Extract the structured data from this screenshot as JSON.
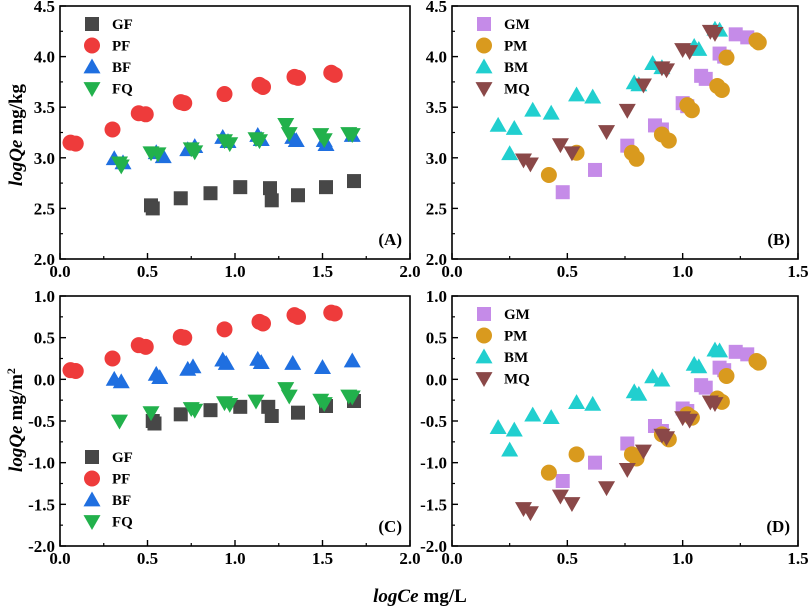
{
  "figure": {
    "xlabel_prefix": "logCe",
    "xlabel_unit": "mg/L",
    "ylabel_top_prefix": "logQe",
    "ylabel_top_unit": "mg/kg",
    "ylabel_bottom_prefix": "logQe",
    "ylabel_bottom_unit": "mg/m",
    "ylabel_bottom_sup": "2"
  },
  "colors": {
    "GF": "#474747",
    "PF": "#ee3b3b",
    "BF": "#1f6fe0",
    "FQ": "#22b14c",
    "GM": "#c58be8",
    "PM": "#d99a1e",
    "BM": "#21cfcf",
    "MQ": "#8a4848"
  },
  "chart_data": [
    {
      "id": "A",
      "type": "scatter",
      "panel_label": "(A)",
      "xlim": [
        0.0,
        2.0
      ],
      "ylim": [
        2.0,
        4.5
      ],
      "xticks": [
        "0.0",
        "0.5",
        "1.0",
        "1.5",
        "2.0"
      ],
      "yticks": [
        "2.0",
        "2.5",
        "3.0",
        "3.5",
        "4.0",
        "4.5"
      ],
      "legend_position": "top-left",
      "series": [
        {
          "name": "GF",
          "marker": "square",
          "points": [
            [
              0.52,
              2.53
            ],
            [
              0.53,
              2.5
            ],
            [
              0.69,
              2.6
            ],
            [
              0.86,
              2.65
            ],
            [
              1.03,
              2.71
            ],
            [
              1.2,
              2.7
            ],
            [
              1.21,
              2.58
            ],
            [
              1.36,
              2.63
            ],
            [
              1.52,
              2.71
            ],
            [
              1.68,
              2.77
            ]
          ]
        },
        {
          "name": "PF",
          "marker": "circle",
          "points": [
            [
              0.06,
              3.15
            ],
            [
              0.09,
              3.14
            ],
            [
              0.3,
              3.28
            ],
            [
              0.45,
              3.44
            ],
            [
              0.49,
              3.43
            ],
            [
              0.69,
              3.55
            ],
            [
              0.71,
              3.54
            ],
            [
              0.94,
              3.63
            ],
            [
              1.14,
              3.72
            ],
            [
              1.16,
              3.7
            ],
            [
              1.34,
              3.8
            ],
            [
              1.36,
              3.79
            ],
            [
              1.55,
              3.84
            ],
            [
              1.57,
              3.82
            ]
          ]
        },
        {
          "name": "BF",
          "marker": "triangle-up",
          "points": [
            [
              0.31,
              2.99
            ],
            [
              0.36,
              2.95
            ],
            [
              0.55,
              3.05
            ],
            [
              0.59,
              3.01
            ],
            [
              0.73,
              3.08
            ],
            [
              0.77,
              3.11
            ],
            [
              0.93,
              3.2
            ],
            [
              0.96,
              3.16
            ],
            [
              1.13,
              3.22
            ],
            [
              1.15,
              3.18
            ],
            [
              1.33,
              3.2
            ],
            [
              1.35,
              3.17
            ],
            [
              1.51,
              3.17
            ],
            [
              1.52,
              3.13
            ],
            [
              1.67,
              3.22
            ]
          ]
        },
        {
          "name": "FQ",
          "marker": "triangle-down",
          "points": [
            [
              0.34,
              2.95
            ],
            [
              0.35,
              2.92
            ],
            [
              0.52,
              3.05
            ],
            [
              0.56,
              3.04
            ],
            [
              0.75,
              3.09
            ],
            [
              0.77,
              3.06
            ],
            [
              0.94,
              3.17
            ],
            [
              0.97,
              3.14
            ],
            [
              1.12,
              3.19
            ],
            [
              1.14,
              3.17
            ],
            [
              1.29,
              3.33
            ],
            [
              1.31,
              3.24
            ],
            [
              1.49,
              3.23
            ],
            [
              1.51,
              3.18
            ],
            [
              1.65,
              3.24
            ],
            [
              1.67,
              3.23
            ]
          ]
        }
      ]
    },
    {
      "id": "B",
      "type": "scatter",
      "panel_label": "(B)",
      "xlim": [
        0.0,
        1.5
      ],
      "ylim": [
        2.0,
        4.5
      ],
      "xticks": [
        "0.0",
        "0.5",
        "1.0",
        "1.5"
      ],
      "yticks": [
        "2.0",
        "2.5",
        "3.0",
        "3.5",
        "4.0",
        "4.5"
      ],
      "legend_position": "top-left",
      "series": [
        {
          "name": "GM",
          "marker": "square",
          "points": [
            [
              0.48,
              2.66
            ],
            [
              0.62,
              2.88
            ],
            [
              0.76,
              3.12
            ],
            [
              0.88,
              3.32
            ],
            [
              0.91,
              3.28
            ],
            [
              1.0,
              3.54
            ],
            [
              1.02,
              3.51
            ],
            [
              1.08,
              3.81
            ],
            [
              1.1,
              3.78
            ],
            [
              1.16,
              4.03
            ],
            [
              1.18,
              4.0
            ],
            [
              1.23,
              4.22
            ],
            [
              1.28,
              4.19
            ]
          ]
        },
        {
          "name": "PM",
          "marker": "circle",
          "points": [
            [
              0.42,
              2.83
            ],
            [
              0.54,
              3.05
            ],
            [
              0.78,
              3.05
            ],
            [
              0.8,
              2.99
            ],
            [
              0.91,
              3.23
            ],
            [
              0.94,
              3.17
            ],
            [
              1.02,
              3.52
            ],
            [
              1.04,
              3.47
            ],
            [
              1.15,
              3.71
            ],
            [
              1.17,
              3.67
            ],
            [
              1.19,
              3.99
            ],
            [
              1.32,
              4.16
            ],
            [
              1.33,
              4.14
            ]
          ]
        },
        {
          "name": "BM",
          "marker": "triangle-up",
          "points": [
            [
              0.2,
              3.32
            ],
            [
              0.25,
              3.04
            ],
            [
              0.27,
              3.29
            ],
            [
              0.35,
              3.47
            ],
            [
              0.43,
              3.44
            ],
            [
              0.54,
              3.62
            ],
            [
              0.61,
              3.6
            ],
            [
              0.79,
              3.74
            ],
            [
              0.81,
              3.72
            ],
            [
              0.87,
              3.93
            ],
            [
              0.91,
              3.89
            ],
            [
              1.05,
              4.1
            ],
            [
              1.07,
              4.07
            ],
            [
              1.14,
              4.27
            ],
            [
              1.16,
              4.26
            ]
          ]
        },
        {
          "name": "MQ",
          "marker": "triangle-down",
          "points": [
            [
              0.31,
              2.98
            ],
            [
              0.34,
              2.94
            ],
            [
              0.47,
              3.13
            ],
            [
              0.52,
              3.05
            ],
            [
              0.67,
              3.26
            ],
            [
              0.76,
              3.47
            ],
            [
              0.83,
              3.72
            ],
            [
              0.91,
              3.89
            ],
            [
              0.93,
              3.87
            ],
            [
              1.0,
              4.07
            ],
            [
              1.03,
              4.05
            ],
            [
              1.12,
              4.25
            ],
            [
              1.14,
              4.23
            ]
          ]
        }
      ]
    },
    {
      "id": "C",
      "type": "scatter",
      "panel_label": "(C)",
      "xlim": [
        0.0,
        2.0
      ],
      "ylim": [
        -2.0,
        1.0
      ],
      "xticks": [
        "0.0",
        "0.5",
        "1.0",
        "1.5",
        "2.0"
      ],
      "yticks": [
        "-2.0",
        "-1.5",
        "-1.0",
        "-0.5",
        "0.0",
        "0.5",
        "1.0"
      ],
      "legend_position": "bottom-left",
      "series": [
        {
          "name": "GF",
          "marker": "square",
          "points": [
            [
              0.53,
              -0.5
            ],
            [
              0.54,
              -0.53
            ],
            [
              0.69,
              -0.42
            ],
            [
              0.86,
              -0.37
            ],
            [
              1.03,
              -0.33
            ],
            [
              1.19,
              -0.33
            ],
            [
              1.21,
              -0.44
            ],
            [
              1.36,
              -0.4
            ],
            [
              1.52,
              -0.32
            ],
            [
              1.68,
              -0.26
            ]
          ]
        },
        {
          "name": "PF",
          "marker": "circle",
          "points": [
            [
              0.06,
              0.11
            ],
            [
              0.09,
              0.1
            ],
            [
              0.3,
              0.25
            ],
            [
              0.45,
              0.41
            ],
            [
              0.49,
              0.39
            ],
            [
              0.69,
              0.51
            ],
            [
              0.71,
              0.5
            ],
            [
              0.94,
              0.6
            ],
            [
              1.14,
              0.69
            ],
            [
              1.16,
              0.67
            ],
            [
              1.34,
              0.77
            ],
            [
              1.36,
              0.75
            ],
            [
              1.55,
              0.8
            ],
            [
              1.57,
              0.79
            ]
          ]
        },
        {
          "name": "BF",
          "marker": "triangle-up",
          "points": [
            [
              0.31,
              0.0
            ],
            [
              0.35,
              -0.03
            ],
            [
              0.55,
              0.06
            ],
            [
              0.57,
              0.02
            ],
            [
              0.73,
              0.12
            ],
            [
              0.76,
              0.15
            ],
            [
              0.93,
              0.23
            ],
            [
              0.95,
              0.19
            ],
            [
              1.13,
              0.24
            ],
            [
              1.15,
              0.2
            ],
            [
              1.33,
              0.19
            ],
            [
              1.5,
              0.14
            ],
            [
              1.67,
              0.22
            ]
          ]
        },
        {
          "name": "FQ",
          "marker": "triangle-down",
          "points": [
            [
              0.34,
              -0.5
            ],
            [
              0.52,
              -0.4
            ],
            [
              0.75,
              -0.35
            ],
            [
              0.77,
              -0.37
            ],
            [
              0.94,
              -0.28
            ],
            [
              0.97,
              -0.3
            ],
            [
              1.12,
              -0.26
            ],
            [
              1.29,
              -0.11
            ],
            [
              1.31,
              -0.2
            ],
            [
              1.49,
              -0.25
            ],
            [
              1.51,
              -0.29
            ],
            [
              1.65,
              -0.2
            ],
            [
              1.67,
              -0.21
            ]
          ]
        }
      ]
    },
    {
      "id": "D",
      "type": "scatter",
      "panel_label": "(D)",
      "xlim": [
        0.0,
        1.5
      ],
      "ylim": [
        -2.0,
        1.0
      ],
      "xticks": [
        "0.0",
        "0.5",
        "1.0",
        "1.5"
      ],
      "yticks": [
        "-2.0",
        "-1.5",
        "-1.0",
        "-0.5",
        "0.0",
        "0.5",
        "1.0"
      ],
      "legend_position": "top-left",
      "series": [
        {
          "name": "GM",
          "marker": "square",
          "points": [
            [
              0.48,
              -1.22
            ],
            [
              0.62,
              -1.0
            ],
            [
              0.76,
              -0.77
            ],
            [
              0.88,
              -0.56
            ],
            [
              0.91,
              -0.62
            ],
            [
              1.0,
              -0.35
            ],
            [
              1.02,
              -0.38
            ],
            [
              1.08,
              -0.07
            ],
            [
              1.1,
              -0.1
            ],
            [
              1.16,
              0.14
            ],
            [
              1.18,
              0.11
            ],
            [
              1.23,
              0.33
            ],
            [
              1.28,
              0.3
            ]
          ]
        },
        {
          "name": "PM",
          "marker": "circle",
          "points": [
            [
              0.42,
              -1.12
            ],
            [
              0.54,
              -0.9
            ],
            [
              0.78,
              -0.9
            ],
            [
              0.8,
              -0.95
            ],
            [
              0.91,
              -0.66
            ],
            [
              0.94,
              -0.72
            ],
            [
              1.02,
              -0.42
            ],
            [
              1.04,
              -0.46
            ],
            [
              1.15,
              -0.23
            ],
            [
              1.17,
              -0.27
            ],
            [
              1.19,
              0.04
            ],
            [
              1.32,
              0.22
            ],
            [
              1.33,
              0.2
            ]
          ]
        },
        {
          "name": "BM",
          "marker": "triangle-up",
          "points": [
            [
              0.2,
              -0.58
            ],
            [
              0.25,
              -0.85
            ],
            [
              0.27,
              -0.61
            ],
            [
              0.35,
              -0.43
            ],
            [
              0.43,
              -0.46
            ],
            [
              0.54,
              -0.28
            ],
            [
              0.61,
              -0.3
            ],
            [
              0.79,
              -0.15
            ],
            [
              0.81,
              -0.18
            ],
            [
              0.87,
              0.03
            ],
            [
              0.91,
              -0.01
            ],
            [
              1.05,
              0.18
            ],
            [
              1.07,
              0.15
            ],
            [
              1.14,
              0.35
            ],
            [
              1.16,
              0.34
            ]
          ]
        },
        {
          "name": "MQ",
          "marker": "triangle-down",
          "points": [
            [
              0.31,
              -1.55
            ],
            [
              0.34,
              -1.6
            ],
            [
              0.47,
              -1.4
            ],
            [
              0.52,
              -1.49
            ],
            [
              0.67,
              -1.3
            ],
            [
              0.76,
              -1.08
            ],
            [
              0.83,
              -0.86
            ],
            [
              0.91,
              -0.67
            ],
            [
              0.93,
              -0.7
            ],
            [
              1.0,
              -0.46
            ],
            [
              1.03,
              -0.49
            ],
            [
              1.12,
              -0.27
            ],
            [
              1.14,
              -0.29
            ]
          ]
        }
      ]
    }
  ]
}
